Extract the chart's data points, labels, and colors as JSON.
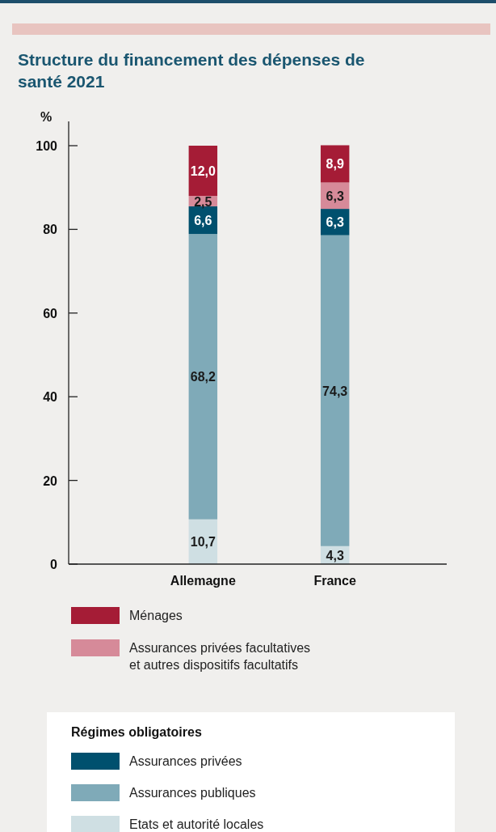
{
  "chart_data": {
    "type": "bar",
    "title": "Structure du financement des dépenses de santé 2021",
    "ylabel": "%",
    "categories": [
      "Allemagne",
      "France"
    ],
    "stacked": true,
    "ylim": [
      0,
      100
    ],
    "yticks": [
      0,
      20,
      40,
      60,
      80,
      100
    ],
    "grid": false,
    "legend": "bottom",
    "legend_title": "Régimes obligatoires",
    "series": [
      {
        "name": "Etats et autorité locales",
        "color": "#cfdfe3",
        "values": [
          10.7,
          4.3
        ],
        "value_labels": [
          "10,7",
          "4,3"
        ]
      },
      {
        "name": "Assurances publiques",
        "color": "#7faab8",
        "values": [
          68.2,
          74.3
        ],
        "value_labels": [
          "68,2",
          "74,3"
        ]
      },
      {
        "name": "Assurances privées",
        "color": "#00506e",
        "values": [
          6.6,
          6.3
        ],
        "value_labels": [
          "6,6",
          "6,3"
        ]
      },
      {
        "name": "Assurances privées facultatives et autres dispositifs facultatifs",
        "color": "#d68a99",
        "values": [
          2.5,
          6.3
        ],
        "value_labels": [
          "2,5",
          "6,3"
        ]
      },
      {
        "name": "Ménages",
        "color": "#a51c36",
        "values": [
          12.0,
          8.9
        ],
        "value_labels": [
          "12,0",
          "8,9"
        ]
      }
    ]
  }
}
